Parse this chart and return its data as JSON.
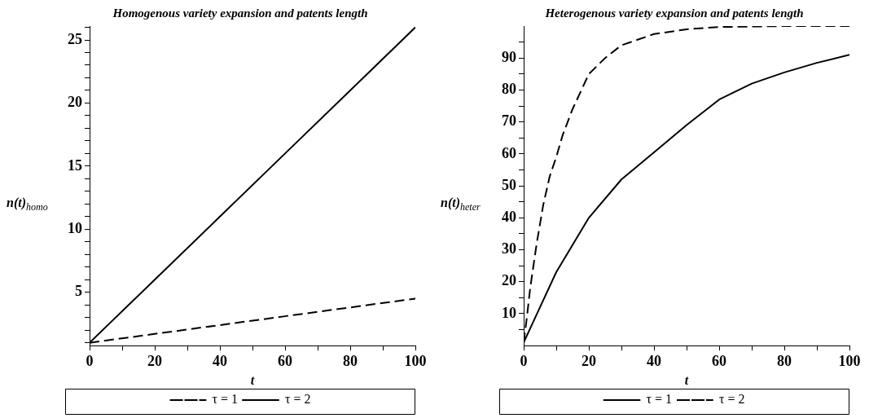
{
  "chart_data": [
    {
      "type": "line",
      "title": "Homogenous variety expansion and patents length",
      "xlabel": "t",
      "ylabel": "n(t)$_{homo}$",
      "legend": "bottom",
      "marker": "none",
      "grid": false,
      "xlim": [
        0,
        100
      ],
      "xticks": [
        0,
        {
          "value": 10,
          "label": null
        },
        20,
        {
          "value": 30,
          "label": null
        },
        40,
        {
          "value": 50,
          "label": null
        },
        60,
        {
          "value": 70,
          "label": null
        },
        80,
        {
          "value": 90,
          "label": null
        },
        100
      ],
      "ylim": [
        0.77,
        26.1
      ],
      "yticks": [
        {
          "value": 1,
          "label": null
        },
        {
          "value": 2,
          "label": null
        },
        {
          "value": 3,
          "label": null
        },
        {
          "value": 4,
          "label": null
        },
        5,
        {
          "value": 6,
          "label": null
        },
        {
          "value": 7,
          "label": null
        },
        {
          "value": 8,
          "label": null
        },
        {
          "value": 9,
          "label": null
        },
        10,
        {
          "value": 11,
          "label": null
        },
        {
          "value": 12,
          "label": null
        },
        {
          "value": 13,
          "label": null
        },
        {
          "value": 14,
          "label": null
        },
        15,
        {
          "value": 16,
          "label": null
        },
        {
          "value": 17,
          "label": null
        },
        {
          "value": 18,
          "label": null
        },
        {
          "value": 19,
          "label": null
        },
        20,
        {
          "value": 21,
          "label": null
        },
        {
          "value": 22,
          "label": null
        },
        {
          "value": 23,
          "label": null
        },
        {
          "value": 24,
          "label": null
        },
        25,
        {
          "value": 26,
          "label": null
        }
      ],
      "x": [
        0,
        20,
        40,
        60,
        80,
        100
      ],
      "series": [
        {
          "name": "τ = 1",
          "color": "#000000",
          "line_style": "dashed",
          "values": [
            1,
            1.7,
            2.4,
            3.1,
            3.8,
            4.5
          ]
        },
        {
          "name": "τ = 2",
          "color": "#000000",
          "line_style": "solid",
          "values": [
            1,
            6,
            11,
            16,
            21,
            26
          ]
        }
      ]
    },
    {
      "type": "line",
      "title": "Heterogenous variety expansion and patents length",
      "xlabel": "t",
      "ylabel": "n(t)$_{heter}$",
      "legend": "bottom",
      "marker": "none",
      "grid": false,
      "xlim": [
        0,
        100
      ],
      "xticks": [
        0,
        {
          "value": 10,
          "label": null
        },
        20,
        {
          "value": 30,
          "label": null
        },
        40,
        {
          "value": 50,
          "label": null
        },
        60,
        {
          "value": 70,
          "label": null
        },
        80,
        {
          "value": 90,
          "label": null
        },
        100
      ],
      "ylim": [
        0,
        100
      ],
      "yticks": [
        {
          "value": 5,
          "label": null
        },
        10,
        {
          "value": 15,
          "label": null
        },
        20,
        {
          "value": 25,
          "label": null
        },
        30,
        {
          "value": 35,
          "label": null
        },
        40,
        {
          "value": 45,
          "label": null
        },
        50,
        {
          "value": 55,
          "label": null
        },
        60,
        {
          "value": 65,
          "label": null
        },
        70,
        {
          "value": 75,
          "label": null
        },
        80,
        {
          "value": 85,
          "label": null
        },
        90,
        {
          "value": 95,
          "label": null
        }
      ],
      "series": [
        {
          "name": "τ = 1",
          "color": "#000000",
          "line_style": "solid",
          "x": [
            0,
            5,
            10,
            20,
            30,
            40,
            50,
            60,
            70,
            80,
            90,
            100
          ],
          "values": [
            1,
            12,
            23,
            40,
            52,
            60.5,
            69,
            77,
            82,
            85.5,
            88.5,
            91
          ]
        },
        {
          "name": "τ = 2",
          "color": "#000000",
          "line_style": "dashed",
          "x": [
            0,
            1,
            2,
            4,
            6,
            8,
            10,
            12,
            15,
            20,
            25,
            30,
            40,
            50,
            60,
            80,
            100
          ],
          "values": [
            1,
            9,
            18,
            32,
            44,
            53,
            59,
            66,
            74,
            85,
            90,
            94,
            97.5,
            99,
            99.7,
            100,
            100
          ]
        }
      ]
    }
  ]
}
